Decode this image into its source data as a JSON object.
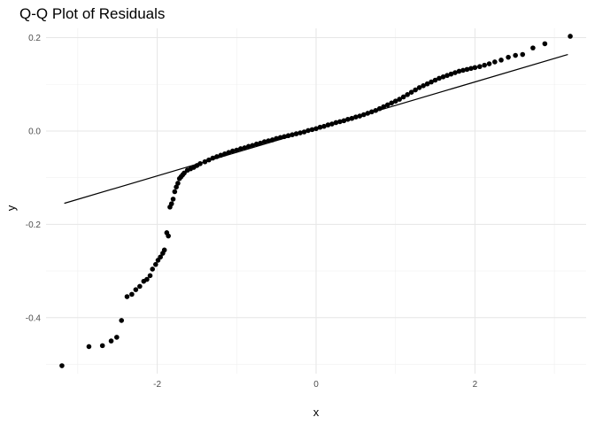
{
  "chart_data": {
    "type": "scatter",
    "title": "Q-Q Plot of Residuals",
    "xlabel": "x",
    "ylabel": "y",
    "xlim": [
      -3.4,
      3.4
    ],
    "ylim": [
      -0.52,
      0.22
    ],
    "x_ticks": [
      -2,
      0,
      2
    ],
    "x_tick_labels": [
      "-2",
      "0",
      "2"
    ],
    "y_ticks": [
      -0.4,
      -0.2,
      0.0,
      0.2
    ],
    "y_tick_labels": [
      "-0.4",
      "-0.2",
      "0.0",
      "0.2"
    ],
    "grid": true,
    "reference_line": {
      "x": [
        -3.17,
        3.17
      ],
      "y": [
        -0.155,
        0.164
      ]
    },
    "points": {
      "x": [
        -3.2,
        -2.86,
        -2.69,
        -2.58,
        -2.51,
        -2.45,
        -2.38,
        -2.32,
        -2.27,
        -2.22,
        -2.17,
        -2.13,
        -2.09,
        -2.06,
        -2.02,
        -1.99,
        -1.96,
        -1.93,
        -1.91,
        -1.88,
        -1.86,
        -1.84,
        -1.82,
        -1.8,
        -1.78,
        -1.76,
        -1.74,
        -1.72,
        -1.7,
        -1.68,
        -1.66,
        -1.62,
        -1.58,
        -1.54,
        -1.5,
        -1.46,
        -1.4,
        -1.35,
        -1.3,
        -1.25,
        -1.2,
        -1.15,
        -1.1,
        -1.05,
        -1.0,
        -0.95,
        -0.9,
        -0.85,
        -0.8,
        -0.75,
        -0.7,
        -0.65,
        -0.6,
        -0.55,
        -0.5,
        -0.45,
        -0.4,
        -0.35,
        -0.3,
        -0.25,
        -0.2,
        -0.15,
        -0.1,
        -0.05,
        0.0,
        0.05,
        0.1,
        0.15,
        0.2,
        0.25,
        0.3,
        0.35,
        0.4,
        0.45,
        0.5,
        0.55,
        0.6,
        0.65,
        0.7,
        0.75,
        0.8,
        0.85,
        0.9,
        0.95,
        1.0,
        1.05,
        1.1,
        1.15,
        1.2,
        1.25,
        1.3,
        1.35,
        1.4,
        1.45,
        1.5,
        1.55,
        1.6,
        1.65,
        1.7,
        1.75,
        1.8,
        1.85,
        1.9,
        1.95,
        2.0,
        2.06,
        2.12,
        2.18,
        2.25,
        2.33,
        2.42,
        2.51,
        2.6,
        2.73,
        2.88,
        3.2
      ],
      "y": [
        -0.503,
        -0.462,
        -0.46,
        -0.45,
        -0.442,
        -0.406,
        -0.355,
        -0.35,
        -0.34,
        -0.333,
        -0.322,
        -0.318,
        -0.31,
        -0.296,
        -0.286,
        -0.277,
        -0.27,
        -0.262,
        -0.255,
        -0.218,
        -0.225,
        -0.163,
        -0.156,
        -0.146,
        -0.13,
        -0.12,
        -0.112,
        -0.102,
        -0.098,
        -0.094,
        -0.09,
        -0.084,
        -0.081,
        -0.078,
        -0.074,
        -0.07,
        -0.066,
        -0.062,
        -0.058,
        -0.055,
        -0.052,
        -0.049,
        -0.046,
        -0.043,
        -0.041,
        -0.038,
        -0.036,
        -0.033,
        -0.031,
        -0.028,
        -0.026,
        -0.023,
        -0.021,
        -0.019,
        -0.016,
        -0.014,
        -0.012,
        -0.01,
        -0.008,
        -0.006,
        -0.004,
        -0.002,
        0.001,
        0.003,
        0.005,
        0.008,
        0.01,
        0.013,
        0.015,
        0.018,
        0.02,
        0.022,
        0.025,
        0.027,
        0.03,
        0.032,
        0.035,
        0.038,
        0.041,
        0.044,
        0.048,
        0.052,
        0.056,
        0.06,
        0.064,
        0.068,
        0.073,
        0.078,
        0.083,
        0.088,
        0.093,
        0.097,
        0.101,
        0.105,
        0.109,
        0.113,
        0.116,
        0.119,
        0.122,
        0.125,
        0.128,
        0.13,
        0.132,
        0.134,
        0.136,
        0.138,
        0.141,
        0.144,
        0.148,
        0.152,
        0.158,
        0.162,
        0.164,
        0.178,
        0.187,
        0.203
      ]
    }
  }
}
